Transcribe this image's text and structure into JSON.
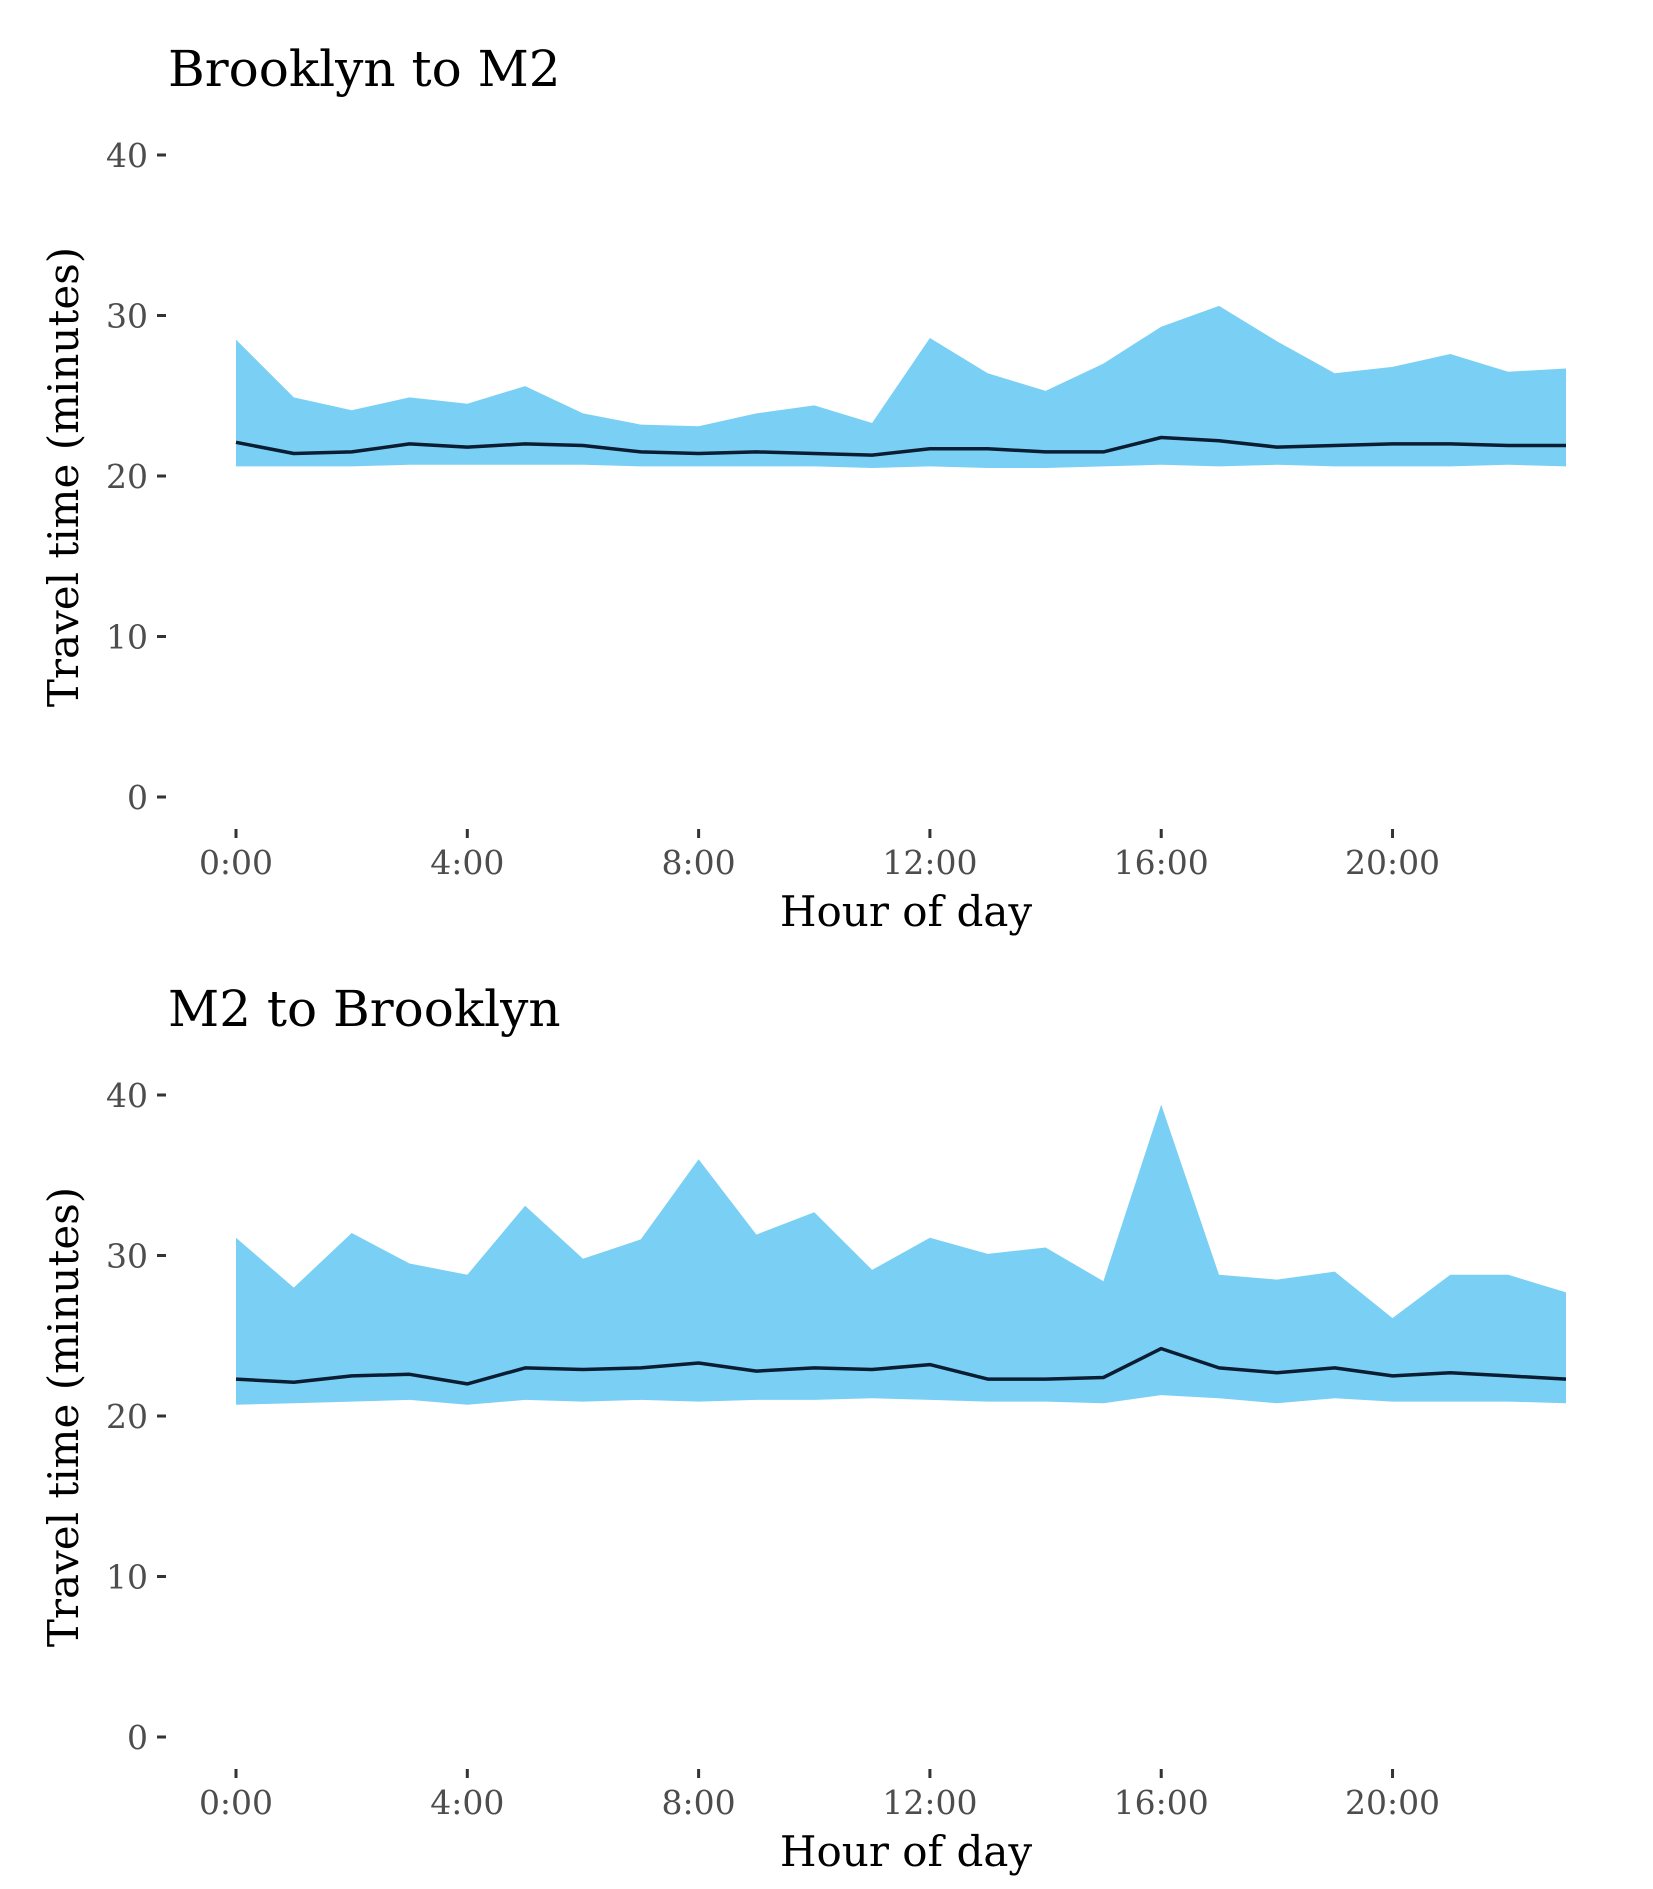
{
  "chart_data": [
    {
      "type": "area",
      "title": "Brooklyn to M2",
      "xlabel": "Hour of day",
      "ylabel": "Travel time (minutes)",
      "ylim": [
        0,
        40
      ],
      "xlim": [
        0,
        23
      ],
      "grid": false,
      "x_ticks": [
        0,
        4,
        8,
        12,
        16,
        20
      ],
      "x_tick_labels": [
        "0:00",
        "4:00",
        "8:00",
        "12:00",
        "16:00",
        "20:00"
      ],
      "y_ticks": [
        0,
        10,
        20,
        30,
        40
      ],
      "y_tick_labels": [
        "0",
        "10",
        "20",
        "30",
        "40"
      ],
      "x": [
        0,
        1,
        2,
        3,
        4,
        5,
        6,
        7,
        8,
        9,
        10,
        11,
        12,
        13,
        14,
        15,
        16,
        17,
        18,
        19,
        20,
        21,
        22,
        23
      ],
      "band_low": [
        20.6,
        20.6,
        20.6,
        20.7,
        20.7,
        20.7,
        20.7,
        20.6,
        20.6,
        20.6,
        20.6,
        20.5,
        20.6,
        20.5,
        20.5,
        20.6,
        20.7,
        20.6,
        20.7,
        20.6,
        20.6,
        20.6,
        20.7,
        20.6
      ],
      "band_high": [
        28.5,
        24.9,
        24.1,
        24.9,
        24.5,
        25.6,
        23.9,
        23.2,
        23.1,
        23.9,
        24.4,
        23.3,
        28.6,
        26.4,
        25.3,
        27.0,
        29.3,
        30.6,
        28.4,
        26.4,
        26.8,
        27.6,
        26.5,
        26.7
      ],
      "median": [
        22.1,
        21.4,
        21.5,
        22.0,
        21.8,
        22.0,
        21.9,
        21.5,
        21.4,
        21.5,
        21.4,
        21.3,
        21.7,
        21.7,
        21.5,
        21.5,
        22.4,
        22.2,
        21.8,
        21.9,
        22.0,
        22.0,
        21.9,
        21.9
      ],
      "colors": {
        "band": "#79d0f4",
        "median": "#0b1d33"
      }
    },
    {
      "type": "area",
      "title": "M2 to Brooklyn",
      "xlabel": "Hour of day",
      "ylabel": "Travel time (minutes)",
      "ylim": [
        0,
        40
      ],
      "xlim": [
        0,
        23
      ],
      "grid": false,
      "x_ticks": [
        0,
        4,
        8,
        12,
        16,
        20
      ],
      "x_tick_labels": [
        "0:00",
        "4:00",
        "8:00",
        "12:00",
        "16:00",
        "20:00"
      ],
      "y_ticks": [
        0,
        10,
        20,
        30,
        40
      ],
      "y_tick_labels": [
        "0",
        "10",
        "20",
        "30",
        "40"
      ],
      "x": [
        0,
        1,
        2,
        3,
        4,
        5,
        6,
        7,
        8,
        9,
        10,
        11,
        12,
        13,
        14,
        15,
        16,
        17,
        18,
        19,
        20,
        21,
        22,
        23
      ],
      "band_low": [
        20.7,
        20.8,
        20.9,
        21.0,
        20.7,
        21.0,
        20.9,
        21.0,
        20.9,
        21.0,
        21.0,
        21.1,
        21.0,
        20.9,
        20.9,
        20.8,
        21.3,
        21.1,
        20.8,
        21.1,
        20.9,
        20.9,
        20.9,
        20.8
      ],
      "band_high": [
        31.1,
        28.0,
        31.4,
        29.5,
        28.8,
        33.1,
        29.8,
        31.0,
        36.0,
        31.3,
        32.7,
        29.1,
        31.1,
        30.1,
        30.5,
        28.4,
        39.4,
        28.8,
        28.5,
        29.0,
        26.1,
        28.8,
        28.8,
        27.7
      ],
      "median": [
        22.3,
        22.1,
        22.5,
        22.6,
        22.0,
        23.0,
        22.9,
        23.0,
        23.3,
        22.8,
        23.0,
        22.9,
        23.2,
        22.3,
        22.3,
        22.4,
        24.2,
        23.0,
        22.7,
        23.0,
        22.5,
        22.7,
        22.5,
        22.3
      ],
      "colors": {
        "band": "#79d0f4",
        "median": "#0b1d33"
      }
    }
  ]
}
